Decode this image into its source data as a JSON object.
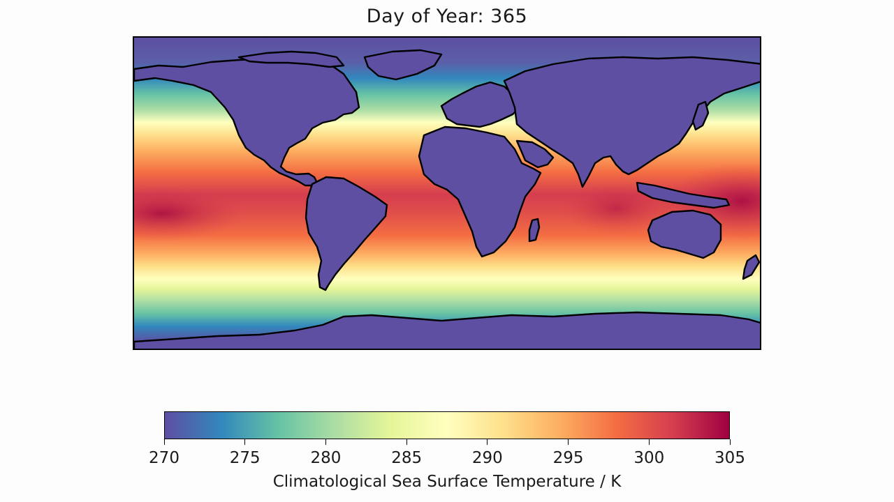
{
  "title": "Day of Year: 365",
  "map": {
    "projection": "plate-carree",
    "field": "sea-surface-temperature",
    "land_color": "#5e4fa2",
    "coastline_color": "#000000"
  },
  "colorbar": {
    "label": "Climatological Sea Surface Temperature / K",
    "colormap": "Spectral_r",
    "colors": [
      "#5e4fa2",
      "#3288bd",
      "#66c2a5",
      "#abdda4",
      "#e6f598",
      "#ffffbf",
      "#fee08b",
      "#fdae61",
      "#f46d43",
      "#d53e4f",
      "#9e0142"
    ],
    "ticks": [
      "270",
      "275",
      "280",
      "285",
      "290",
      "295",
      "300",
      "305"
    ],
    "vmin": 270,
    "vmax": 305
  }
}
